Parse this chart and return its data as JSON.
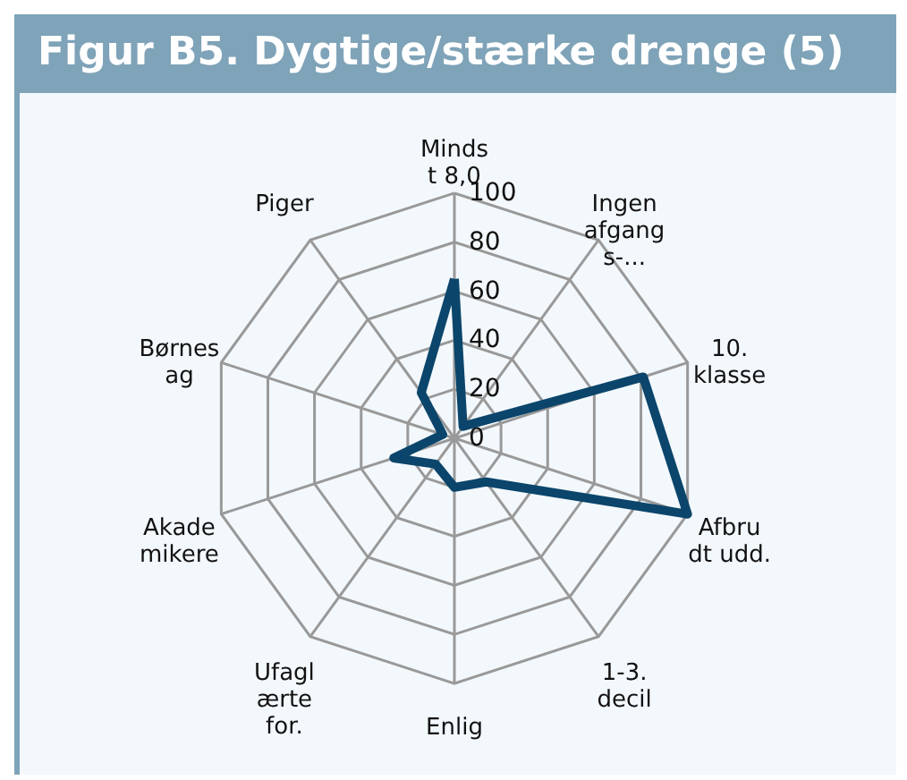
{
  "chart_data": {
    "type": "radar",
    "title": "Figur B5. Dygtige/stærke drenge (5)",
    "categories": [
      "Minds\nt 8,0",
      "Ingen\nafgang\ns-...",
      "10.\nklasse",
      "Afbru\ndt udd.",
      "1-3.\ndecil",
      "Enlig",
      "Ufagl\nærte\nfor.",
      "Akade\nmikere",
      "Børnes\nag",
      "Piger"
    ],
    "series": [
      {
        "color": "#0b456b",
        "values": [
          65,
          6,
          81,
          100,
          22,
          20,
          13,
          26,
          5,
          23
        ]
      }
    ],
    "ylim": [
      0,
      100
    ],
    "yticks": [
      0,
      20,
      40,
      60,
      80,
      100
    ],
    "grid": true
  }
}
